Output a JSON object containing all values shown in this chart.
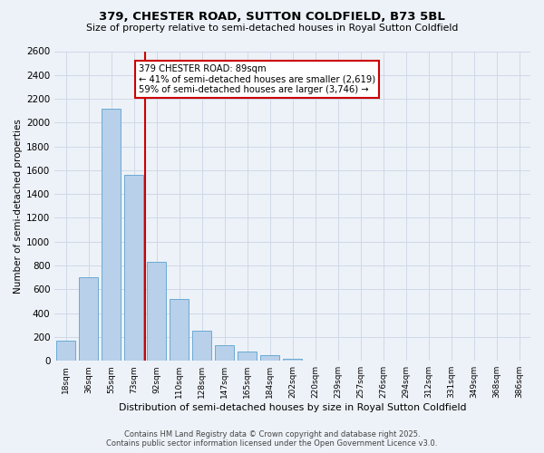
{
  "title": "379, CHESTER ROAD, SUTTON COLDFIELD, B73 5BL",
  "subtitle": "Size of property relative to semi-detached houses in Royal Sutton Coldfield",
  "xlabel": "Distribution of semi-detached houses by size in Royal Sutton Coldfield",
  "ylabel": "Number of semi-detached properties",
  "bin_labels": [
    "18sqm",
    "36sqm",
    "55sqm",
    "73sqm",
    "92sqm",
    "110sqm",
    "128sqm",
    "147sqm",
    "165sqm",
    "184sqm",
    "202sqm",
    "220sqm",
    "239sqm",
    "257sqm",
    "276sqm",
    "294sqm",
    "312sqm",
    "331sqm",
    "349sqm",
    "368sqm",
    "386sqm"
  ],
  "bar_heights": [
    170,
    700,
    2120,
    1560,
    830,
    520,
    255,
    130,
    75,
    45,
    20,
    0,
    0,
    0,
    0,
    0,
    0,
    0,
    0,
    0,
    0
  ],
  "bar_color": "#b8d0ea",
  "bar_edge_color": "#6aaad4",
  "vline_bin_index": 4,
  "vline_color": "#cc0000",
  "annotation_text": "379 CHESTER ROAD: 89sqm\n← 41% of semi-detached houses are smaller (2,619)\n59% of semi-detached houses are larger (3,746) →",
  "annotation_box_color": "#ffffff",
  "annotation_box_edge": "#cc0000",
  "ylim": [
    0,
    2600
  ],
  "yticks": [
    0,
    200,
    400,
    600,
    800,
    1000,
    1200,
    1400,
    1600,
    1800,
    2000,
    2200,
    2400,
    2600
  ],
  "grid_color": "#d0d8e8",
  "background_color": "#edf2f8",
  "footer_line1": "Contains HM Land Registry data © Crown copyright and database right 2025.",
  "footer_line2": "Contains public sector information licensed under the Open Government Licence v3.0."
}
